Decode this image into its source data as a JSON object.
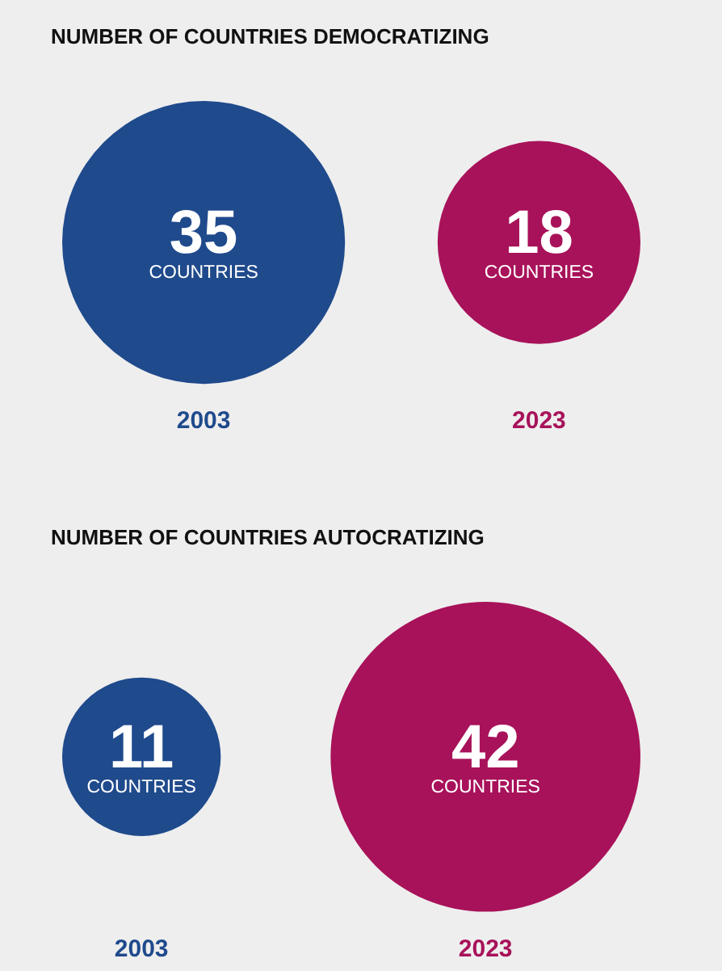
{
  "chart_data": [
    {
      "type": "other",
      "title": "NUMBER OF COUNTRIES DEMOCRATIZING",
      "categories": [
        "2003",
        "2023"
      ],
      "values": [
        35,
        18
      ],
      "colors": [
        "#1f4a8c",
        "#a8125a"
      ],
      "data_labels": true,
      "annotations": [
        "COUNTRIES",
        "COUNTRIES"
      ]
    },
    {
      "type": "other",
      "title": "NUMBER OF COUNTRIES AUTOCRATIZING",
      "categories": [
        "2003",
        "2023"
      ],
      "values": [
        11,
        42
      ],
      "colors": [
        "#1f4a8c",
        "#a8125a"
      ],
      "data_labels": true,
      "annotations": [
        "COUNTRIES",
        "COUNTRIES"
      ]
    }
  ]
}
